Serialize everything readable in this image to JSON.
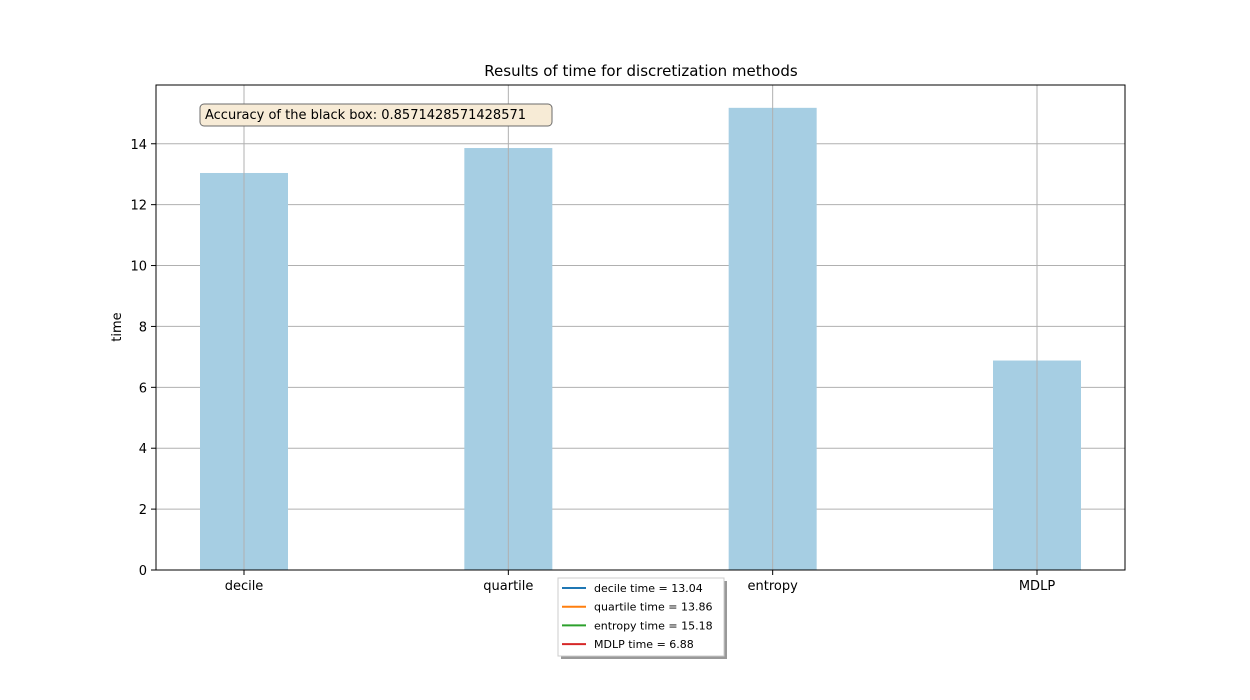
{
  "chart_data": {
    "type": "bar",
    "title": "Results of time for discretization methods",
    "xlabel": "",
    "ylabel": "time",
    "categories": [
      "decile",
      "quartile",
      "entropy",
      "MDLP"
    ],
    "values": [
      13.04,
      13.86,
      15.18,
      6.88
    ],
    "ylim": [
      0,
      15.93
    ],
    "yticks": [
      0,
      2,
      4,
      6,
      8,
      10,
      12,
      14
    ],
    "grid": true,
    "bar_color": "#a6cee3",
    "annotation": "Accuracy of the black box: 0.8571428571428571",
    "legend": {
      "placement": "bottom-center",
      "entries": [
        {
          "label": "decile time = 13.04",
          "color": "#1f77b4"
        },
        {
          "label": "quartile time = 13.86",
          "color": "#ff7f0e"
        },
        {
          "label": "entropy time = 15.18",
          "color": "#2ca02c"
        },
        {
          "label": "MDLP time = 6.88",
          "color": "#d62728"
        }
      ]
    }
  }
}
